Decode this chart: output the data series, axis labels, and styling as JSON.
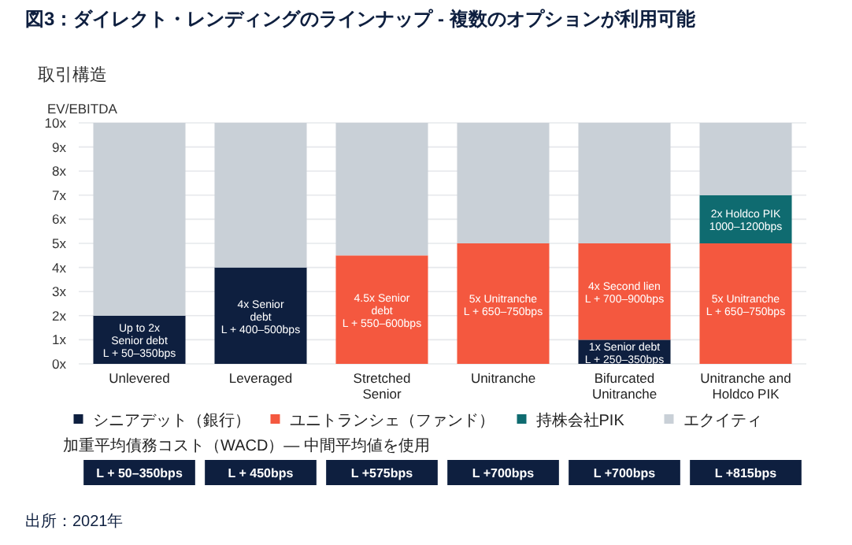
{
  "chart_data": {
    "type": "bar",
    "stacked": true,
    "title": "図3：ダイレクト・レンディングのラインナップ - 複数のオプションが利用可能",
    "subtitle": "取引構造",
    "ylabel": "EV/EBITDA",
    "categories": [
      "Unlevered",
      "Leveraged",
      "Stretched Senior",
      "Unitranche",
      "Bifurcated Unitranche",
      "Unitranche and Holdco PIK"
    ],
    "series": [
      {
        "name": "シニアデット（銀行）",
        "color": "#0e1f3f",
        "values": [
          2,
          4,
          null,
          null,
          1,
          null
        ]
      },
      {
        "name": "ユニトランシェ（ファンド）",
        "color": "#f4583f",
        "values": [
          null,
          null,
          4.5,
          5,
          4,
          5
        ]
      },
      {
        "name": "持株会社PIK",
        "color": "#0f6b70",
        "values": [
          null,
          null,
          null,
          null,
          null,
          2
        ]
      },
      {
        "name": "エクイティ",
        "color": "#c9d0d7",
        "values": [
          8,
          6,
          5.5,
          5,
          5,
          3
        ]
      }
    ],
    "ylim": [
      0,
      10
    ],
    "yticks": [
      {
        "value": 0,
        "label": "0x"
      },
      {
        "value": 1,
        "label": "1x"
      },
      {
        "value": 2,
        "label": "2x"
      },
      {
        "value": 3,
        "label": "3x"
      },
      {
        "value": 4,
        "label": "4x"
      },
      {
        "value": 5,
        "label": "5x"
      },
      {
        "value": 6,
        "label": "6x"
      },
      {
        "value": 7,
        "label": "7x"
      },
      {
        "value": 8,
        "label": "8x"
      },
      {
        "value": 9,
        "label": "9x"
      },
      {
        "value": 10,
        "label": "10x"
      }
    ],
    "grid": "y",
    "legend": "bottom",
    "annotations": [
      "Up to 2x\nSenior debt\nL + 50–350bps",
      "4x Senior\ndebt\nL + 400–500bps",
      "1x Senior debt\nL + 250–350bps",
      "4.5x Senior\ndebt\nL + 550–600bps",
      "5x Unitranche\nL + 650–750bps",
      "4x Second lien\nL + 700–900bps",
      "5x Unitranche\nL + 650–750bps",
      "2x Holdco PIK\n1000–1200bps",
      "加重平均債務コスト（WACD）— 中間平均値を使用",
      "L + 50–350bps",
      "L + 450bps",
      "L +575bps",
      "L +700bps",
      "L +700bps",
      "L +815bps",
      "出所：2021年"
    ]
  }
}
